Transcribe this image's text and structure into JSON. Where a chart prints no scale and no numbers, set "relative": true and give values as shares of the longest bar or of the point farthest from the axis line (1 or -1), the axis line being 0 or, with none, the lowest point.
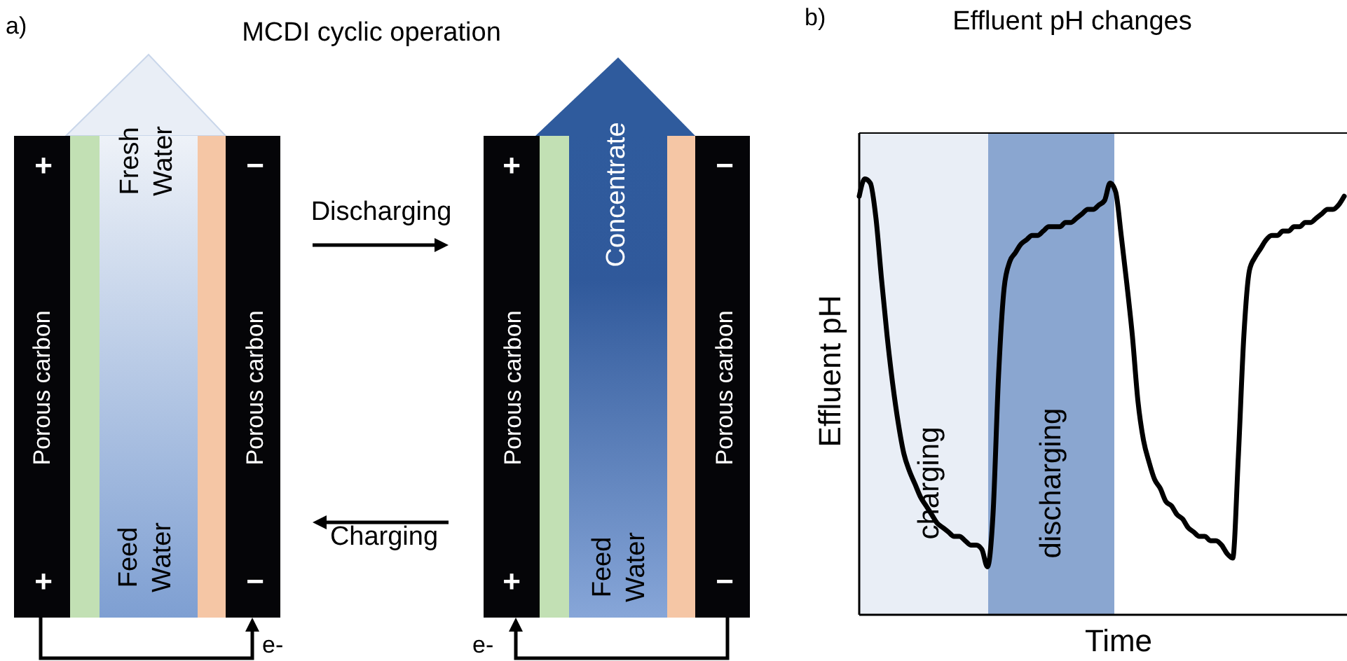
{
  "chart_data": [
    {
      "type": "other",
      "title": "MCDI cyclic operation",
      "annotations": [
        "a)",
        "Fresh Water",
        "Feed Water",
        "Porous carbon",
        "Porous carbon",
        "Porous carbon",
        "Porous carbon",
        "Concentrate",
        "Feed Water",
        "Discharging",
        "Charging",
        "+",
        "−",
        "+",
        "−",
        "+",
        "−",
        "+",
        "−",
        "e-",
        "e-"
      ]
    },
    {
      "type": "line",
      "title": "Effluent pH changes",
      "annotations": [
        "b)",
        "charging",
        "discharging"
      ],
      "xlabel": "Time",
      "ylabel": "Effluent pH",
      "relative": true,
      "categories": [
        null,
        null,
        null,
        null,
        null,
        null,
        null,
        null,
        null,
        null,
        null,
        null,
        null,
        null,
        null,
        null,
        null,
        null,
        null,
        null,
        null,
        null,
        null,
        null,
        null,
        null,
        null,
        null,
        null,
        null,
        null,
        null,
        null,
        null,
        null,
        null,
        null,
        null,
        null,
        null,
        null,
        null,
        null,
        null,
        null,
        null,
        null,
        null,
        null,
        null,
        null,
        null,
        null,
        null,
        null,
        null,
        null,
        null,
        null,
        null,
        null,
        null,
        null,
        null,
        null,
        null,
        null,
        null,
        null,
        null,
        null,
        null,
        null,
        null,
        null,
        null,
        null,
        null,
        null,
        null,
        null,
        null,
        null,
        null,
        null,
        null,
        null,
        null
      ],
      "series": [
        {
          "color": "#000000",
          "values": [
            0.96,
            1,
            0.99,
            0.91,
            0.77,
            0.64,
            0.53,
            0.44,
            0.37,
            0.33,
            0.3,
            0.27,
            0.25,
            0.23,
            0.21,
            0.2,
            0.19,
            0.18,
            0.18,
            0.17,
            0.16,
            0.16,
            0.15,
            0.11,
            0.23,
            0.55,
            0.75,
            0.81,
            0.83,
            0.85,
            0.86,
            0.87,
            0.87,
            0.88,
            0.89,
            0.89,
            0.89,
            0.9,
            0.9,
            0.91,
            0.92,
            0.93,
            0.93,
            0.94,
            0.95,
            0.99,
            0.97,
            0.87,
            0.76,
            0.64,
            0.49,
            0.4,
            0.35,
            0.31,
            0.29,
            0.26,
            0.25,
            0.23,
            0.22,
            0.2,
            0.19,
            0.18,
            0.18,
            0.17,
            0.17,
            0.16,
            0.14,
            0.13,
            0.36,
            0.64,
            0.79,
            0.82,
            0.84,
            0.86,
            0.87,
            0.87,
            0.88,
            0.88,
            0.89,
            0.89,
            0.9,
            0.9,
            0.91,
            0.92,
            0.93,
            0.93,
            0.94,
            0.96
          ]
        }
      ]
    }
  ]
}
